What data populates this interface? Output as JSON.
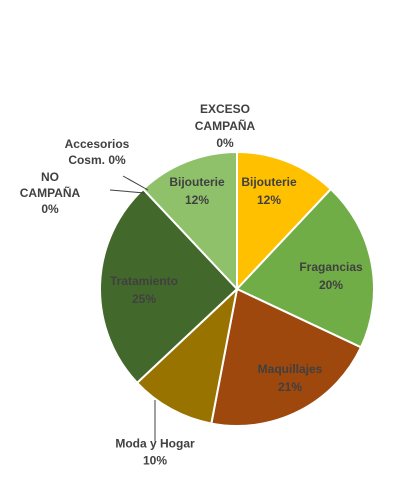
{
  "chart_data": {
    "type": "pie",
    "slices": [
      {
        "label": "Bijouterie",
        "percent_label": "12%",
        "value": 12,
        "color": "#FFC000"
      },
      {
        "label": "Fragancias",
        "percent_label": "20%",
        "value": 20,
        "color": "#70AD47"
      },
      {
        "label": "Maquillajes",
        "percent_label": "21%",
        "value": 21,
        "color": "#9E480E"
      },
      {
        "label": "Moda y Hogar",
        "percent_label": "10%",
        "value": 10,
        "color": "#997300"
      },
      {
        "label": "Tratamiento",
        "percent_label": "25%",
        "value": 25,
        "color": "#43682B"
      },
      {
        "label": "NO CAMPAÑA",
        "percent_label": "0%",
        "value": 0,
        "color": "#264478"
      },
      {
        "label": "Accesorios Cosm.",
        "percent_label": "0%",
        "value": 0,
        "color": "#A5A5A5"
      },
      {
        "label": "Bijouterie",
        "percent_label": "12%",
        "value": 12,
        "color": "#8FC16B"
      },
      {
        "label": "EXCESO CAMPAÑA",
        "percent_label": "0%",
        "value": 0,
        "color": "#5B9BD5"
      }
    ]
  }
}
